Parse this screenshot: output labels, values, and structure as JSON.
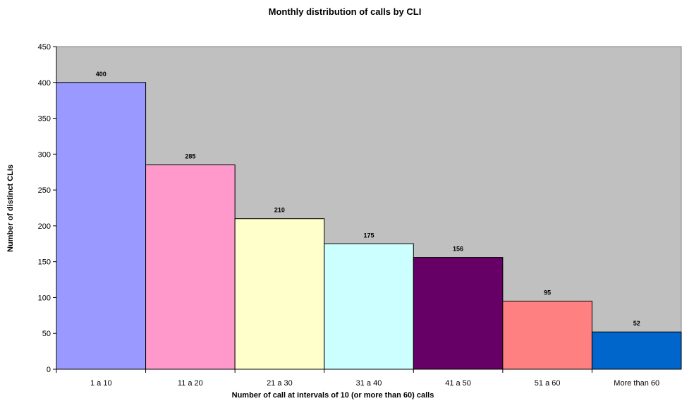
{
  "chart_data": {
    "type": "bar",
    "title": "Monthly distribution of calls by CLI",
    "xlabel": "Number of call at intervals of 10 (or more than 60) calls",
    "ylabel": "Number of distinct CLIs",
    "categories": [
      "1 a 10",
      "11 a 20",
      "21 a 30",
      "31 a 40",
      "41 a 50",
      "51 a 60",
      "More than 60"
    ],
    "values": [
      400,
      285,
      210,
      175,
      156,
      95,
      52
    ],
    "colors": [
      "#9999FF",
      "#FF99CC",
      "#FFFFCC",
      "#CCFFFF",
      "#660066",
      "#FF8080",
      "#0066CC"
    ],
    "plot_background": "#C0C0C0",
    "ylim": [
      0,
      450
    ],
    "yticks": [
      0,
      50,
      100,
      150,
      200,
      250,
      300,
      350,
      400,
      450
    ],
    "grid": false,
    "legend": "none",
    "data_labels": true
  }
}
